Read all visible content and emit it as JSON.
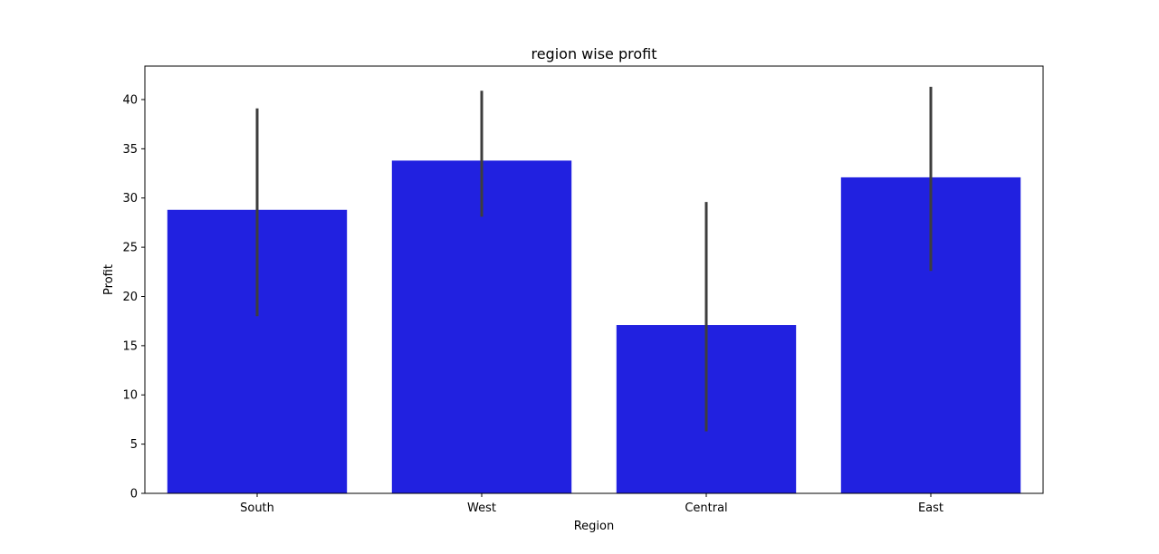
{
  "chart_data": {
    "type": "bar",
    "title": "region wise profit",
    "xlabel": "Region",
    "ylabel": "Profit",
    "categories": [
      "South",
      "West",
      "Central",
      "East"
    ],
    "values": [
      28.8,
      33.8,
      17.1,
      32.1
    ],
    "error_low": [
      18.0,
      28.1,
      6.3,
      22.6
    ],
    "error_high": [
      39.1,
      40.9,
      29.6,
      41.3
    ],
    "ylim": [
      0,
      43.4
    ],
    "yticks": [
      0,
      5,
      10,
      15,
      20,
      25,
      30,
      35,
      40
    ],
    "grid": false,
    "bar_color": "#2121e0",
    "errorbar_color": "#3d3d3d"
  }
}
